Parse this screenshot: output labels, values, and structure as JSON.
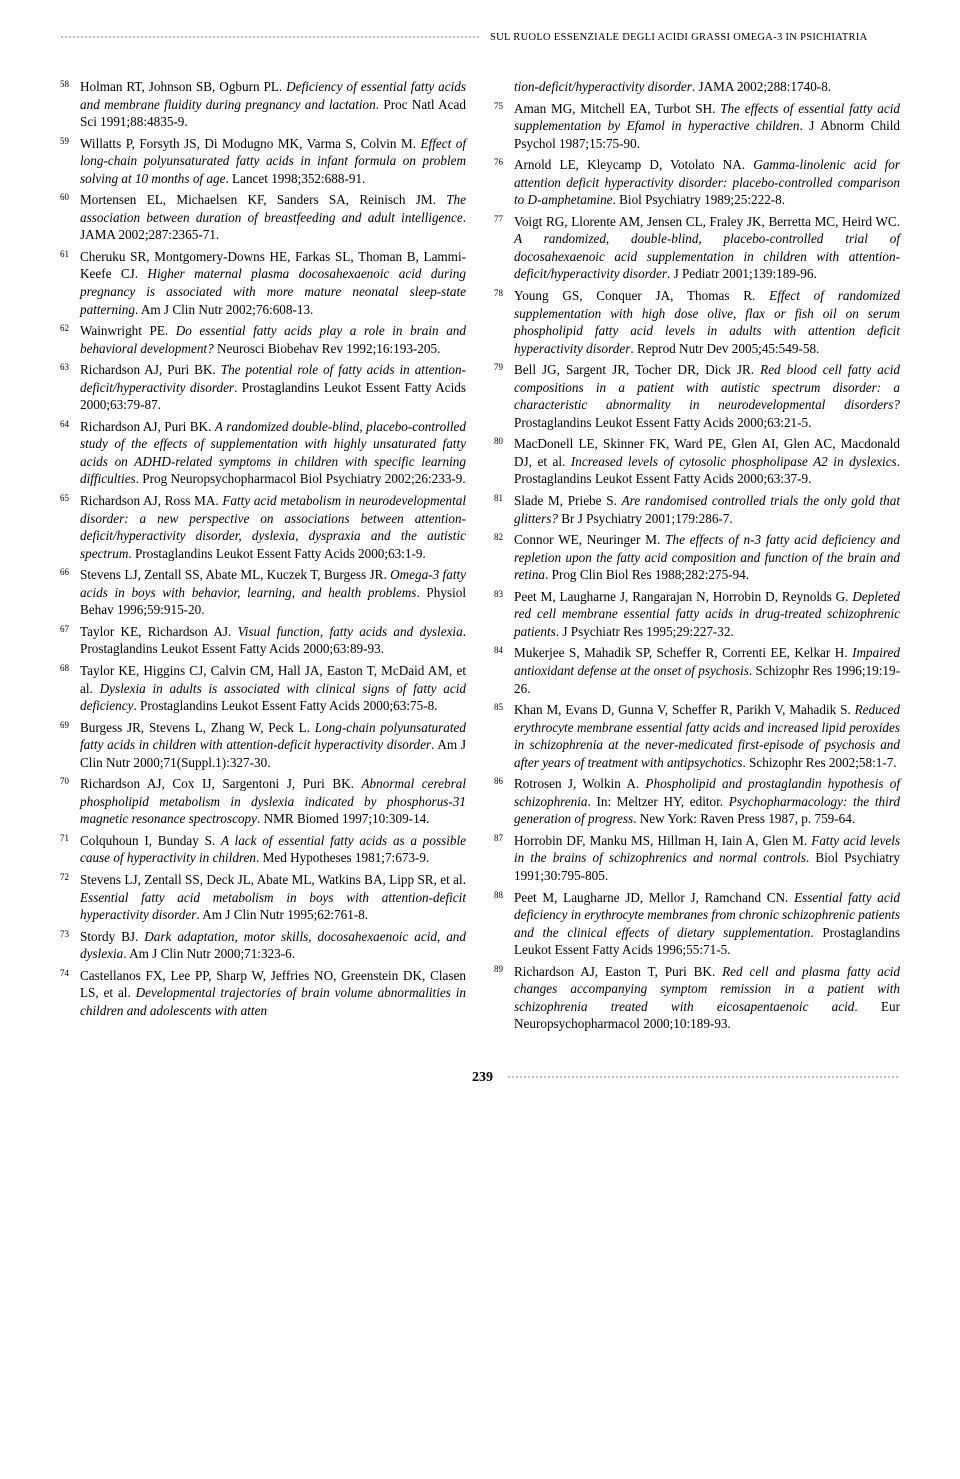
{
  "running_title": "SUL RUOLO ESSENZIALE DEGLI ACIDI GRASSI OMEGA-3 IN PSICHIATRIA",
  "page_number": "239",
  "left": [
    {
      "n": "58",
      "a": "Holman RT, Johnson SB, Ogburn PL. ",
      "t": "Deficiency of essential fatty acids and membrane fluidity during pregnancy and lactation",
      "s": ". Proc Natl Acad Sci 1991;88:4835-9."
    },
    {
      "n": "59",
      "a": "Willatts P, Forsyth JS, Di Modugno MK, Varma S, Colvin M. ",
      "t": "Effect of long-chain polyunsaturated fatty acids in infant formula on problem solving at 10 months of age",
      "s": ". Lancet 1998;352:688-91."
    },
    {
      "n": "60",
      "a": "Mortensen EL, Michaelsen KF, Sanders SA, Reinisch JM. ",
      "t": "The association between duration of breastfeeding and adult intelligence",
      "s": ". JAMA 2002;287:2365-71."
    },
    {
      "n": "61",
      "a": "Cheruku SR, Montgomery-Downs HE, Farkas SL, Thoman B, Lammi-Keefe CJ. ",
      "t": "Higher maternal plasma docosahexaenoic acid during pregnancy is associated with more mature neonatal sleep-state patterning",
      "s": ". Am J Clin Nutr 2002;76:608-13."
    },
    {
      "n": "62",
      "a": "Wainwright PE. ",
      "t": "Do essential fatty acids play a role in brain and behavioral development?",
      "s": " Neurosci Biobehav Rev 1992;16:193-205."
    },
    {
      "n": "63",
      "a": "Richardson AJ, Puri BK. ",
      "t": "The potential role of fatty acids in attention-deficit/hyperactivity disorder",
      "s": ". Prostaglandins Leukot Essent Fatty Acids 2000;63:79-87."
    },
    {
      "n": "64",
      "a": "Richardson AJ, Puri BK. ",
      "t": "A randomized double-blind, placebo-controlled study of the effects of supplementation with highly unsaturated fatty acids on ADHD-related symptoms in children with specific learning difficulties",
      "s": ". Prog Neuropsychopharmacol Biol Psychiatry 2002;26:233-9."
    },
    {
      "n": "65",
      "a": "Richardson AJ, Ross MA. ",
      "t": "Fatty acid metabolism in neurodevelopmental disorder: a new perspective on associations between attention-deficit/hyperactivity disorder, dyslexia, dyspraxia and the autistic spectrum",
      "s": ". Prostaglandins Leukot Essent Fatty Acids 2000;63:1-9."
    },
    {
      "n": "66",
      "a": "Stevens LJ, Zentall SS, Abate ML, Kuczek T, Burgess JR. ",
      "t": "Omega-3 fatty acids in boys with behavior, learning, and health problems",
      "s": ". Physiol Behav 1996;59:915-20."
    },
    {
      "n": "67",
      "a": "Taylor KE, Richardson AJ. ",
      "t": "Visual function, fatty acids and dyslexia",
      "s": ". Prostaglandins Leukot Essent Fatty Acids 2000;63:89-93."
    },
    {
      "n": "68",
      "a": "Taylor KE, Higgins CJ, Calvin CM, Hall JA, Easton T, McDaid AM, et al. ",
      "t": "Dyslexia in adults is associated with clinical signs of fatty acid deficiency",
      "s": ". Prostaglandins Leukot Essent Fatty Acids 2000;63:75-8."
    },
    {
      "n": "69",
      "a": "Burgess JR, Stevens L, Zhang W, Peck L. ",
      "t": "Long-chain polyunsaturated fatty acids in children with attention-deficit hyperactivity disorder",
      "s": ". Am J Clin Nutr 2000;71(Suppl.1):327-30."
    },
    {
      "n": "70",
      "a": "Richardson AJ, Cox IJ, Sargentoni J, Puri BK. ",
      "t": "Abnormal cerebral phospholipid metabolism in dyslexia indicated by phosphorus-31 magnetic resonance spectroscopy",
      "s": ". NMR Biomed 1997;10:309-14."
    },
    {
      "n": "71",
      "a": "Colquhoun I, Bunday S. ",
      "t": "A lack of essential fatty acids as a possible cause of hyperactivity in children",
      "s": ". Med Hypotheses 1981;7:673-9."
    },
    {
      "n": "72",
      "a": "Stevens LJ, Zentall SS, Deck JL, Abate ML, Watkins BA, Lipp SR, et al. ",
      "t": "Essential fatty acid metabolism in boys with attention-deficit hyperactivity disorder",
      "s": ". Am J Clin Nutr 1995;62:761-8."
    },
    {
      "n": "73",
      "a": "Stordy BJ. ",
      "t": "Dark adaptation, motor skills, docosahexaenoic acid, and dyslexia",
      "s": ". Am J Clin Nutr 2000;71:323-6."
    },
    {
      "n": "74",
      "a": "Castellanos FX, Lee PP, Sharp W, Jeffries NO, Greenstein DK, Clasen LS, et al. ",
      "t": "Developmental trajectories of brain volume abnormalities in children and adolescents with atten",
      "s": ""
    }
  ],
  "right": [
    {
      "n": "",
      "a": "",
      "t": "tion-deficit/hyperactivity disorder",
      "s": ". JAMA 2002;288:1740-8."
    },
    {
      "n": "75",
      "a": "Aman MG, Mitchell EA, Turbot SH. ",
      "t": "The effects of essential fatty acid supplementation by Efamol in hyperactive children",
      "s": ". J Abnorm Child Psychol 1987;15:75-90."
    },
    {
      "n": "76",
      "a": "Arnold LE, Kleycamp D, Votolato NA. ",
      "t": "Gamma-linolenic acid for attention deficit hyperactivity disorder: placebo-controlled comparison to D-amphetamine",
      "s": ". Biol Psychiatry 1989;25:222-8."
    },
    {
      "n": "77",
      "a": "Voigt RG, Llorente AM, Jensen CL, Fraley JK, Berretta MC, Heird WC. ",
      "t": "A randomized, double-blind, placebo-controlled trial of docosahexaenoic acid supplementation in children with attention-deficit/hyperactivity disorder",
      "s": ". J Pediatr 2001;139:189-96."
    },
    {
      "n": "78",
      "a": "Young GS, Conquer JA, Thomas R. ",
      "t": "Effect of randomized supplementation with high dose olive, flax or fish oil on serum phospholipid fatty acid levels in adults with attention deficit hyperactivity disorder",
      "s": ". Reprod Nutr Dev 2005;45:549-58."
    },
    {
      "n": "79",
      "a": "Bell JG, Sargent JR, Tocher DR, Dick JR. ",
      "t": "Red blood cell fatty acid compositions in a patient with autistic spectrum disorder: a characteristic abnormality in neurodevelopmental disorders?",
      "s": " Prostaglandins Leukot Essent Fatty Acids 2000;63:21-5."
    },
    {
      "n": "80",
      "a": "MacDonell LE, Skinner FK, Ward PE, Glen AI, Glen AC, Macdonald DJ, et al. ",
      "t": "Increased levels of cytosolic phospholipase A2 in dyslexics",
      "s": ". Prostaglandins Leukot Essent Fatty Acids 2000;63:37-9."
    },
    {
      "n": "81",
      "a": "Slade M, Priebe S. ",
      "t": "Are randomised controlled trials the only gold that glitters?",
      "s": " Br J Psychiatry 2001;179:286-7."
    },
    {
      "n": "82",
      "a": "Connor WE, Neuringer M. ",
      "t": "The effects of n-3 fatty acid deficiency and repletion upon the fatty acid composition and function of the brain and retina",
      "s": ". Prog Clin Biol Res 1988;282:275-94."
    },
    {
      "n": "83",
      "a": "Peet M, Laugharne J, Rangarajan N, Horrobin D, Reynolds G. ",
      "t": "Depleted red cell membrane essential fatty acids in drug-treated schizophrenic patients",
      "s": ". J Psychiatr Res 1995;29:227-32."
    },
    {
      "n": "84",
      "a": "Mukerjee S, Mahadik SP, Scheffer R, Correnti EE, Kelkar H. ",
      "t": "Impaired antioxidant defense at the onset of psychosis",
      "s": ". Schizophr Res 1996;19:19-26."
    },
    {
      "n": "85",
      "a": "Khan M, Evans D, Gunna V, Scheffer R, Parikh V, Mahadik S. ",
      "t": "Reduced erythrocyte membrane essential fatty acids and increased lipid peroxides in schizophrenia at the never-medicated first-episode of psychosis and after years of treatment with antipsychotics",
      "s": ". Schizophr Res 2002;58:1-7."
    },
    {
      "n": "86",
      "a": "Rotrosen J, Wolkin A. ",
      "t": "Phospholipid and prostaglandin hypothesis of schizophrenia",
      "s": ". In: Meltzer HY, editor. ",
      "t2": "Psychopharmacology: the third generation of progress",
      "s2": ". New York: Raven Press 1987, p. 759-64."
    },
    {
      "n": "87",
      "a": "Horrobin DF, Manku MS, Hillman H, Iain A, Glen M. ",
      "t": "Fatty acid levels in the brains of schizophrenics and normal controls",
      "s": ". Biol Psychiatry 1991;30:795-805."
    },
    {
      "n": "88",
      "a": "Peet M, Laugharne JD, Mellor J, Ramchand CN. ",
      "t": "Essential fatty acid deficiency in erythrocyte membranes from chronic schizophrenic patients and the clinical effects of dietary supplementation",
      "s": ". Prostaglandins Leukot Essent Fatty Acids 1996;55:71-5."
    },
    {
      "n": "89",
      "a": "Richardson AJ, Easton T, Puri BK. ",
      "t": "Red cell and plasma fatty acid changes accompanying symptom remission in a patient with schizophrenia treated with eicosapentaenoic acid",
      "s": ". Eur Neuropsychopharmacol 2000;10:189-93."
    }
  ]
}
